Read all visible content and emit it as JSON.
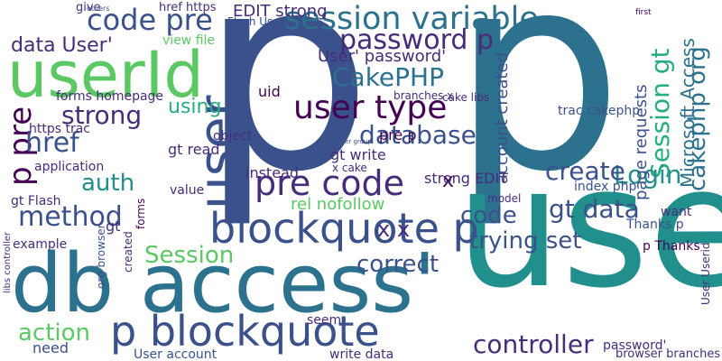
{
  "palette": {
    "dark_purple": "#440154",
    "purple": "#472c7a",
    "indigo": "#3b518b",
    "blue": "#2c718e",
    "teal_blue": "#21908d",
    "teal": "#27ad81",
    "green": "#5cc863",
    "lime": "#aadc32",
    "yellow": "#fde725"
  },
  "words": [
    "p",
    "p",
    "use",
    "db access'",
    "userId",
    "user",
    "p blockquote",
    "blockquote p",
    "session variable",
    "code pre",
    "pre code",
    "password p",
    "user type",
    "CakePHP",
    "Session gt",
    "database",
    "Login",
    "p pre",
    "href",
    "auth",
    "method",
    "gt data",
    "controller",
    "action",
    "Session",
    "create",
    "trying set",
    "code",
    "correct",
    "strong",
    "x x",
    "cakephp org",
    "Microsoft Access",
    "data User'",
    "using",
    "account created",
    "User' password'",
    "page requests",
    "x",
    "give",
    "others",
    "href https",
    "EDIT strong",
    "Flash User",
    "view file",
    "uid",
    "strong EDIT",
    "rel nofollow",
    "gt read",
    "gt write",
    "instead",
    "gt",
    "value",
    "object",
    "application",
    "p Thanks",
    "want",
    "Thanks p",
    "index php",
    "need",
    "example",
    "forms homepage",
    "https trac",
    "trac cakephp",
    "User account",
    "write data",
    "browser branches",
    "password'",
    "org browser",
    "seem",
    "libs controller",
    "User Userid",
    "created",
    "model",
    "pre p",
    "cake libs",
    "branches x",
    "gt Flash",
    "x cake",
    "first",
    "forms",
    "user group"
  ]
}
